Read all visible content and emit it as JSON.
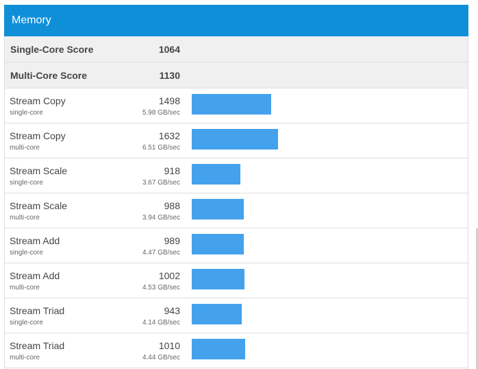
{
  "header": {
    "title": "Memory"
  },
  "summary": [
    {
      "label": "Single-Core Score",
      "score": "1064"
    },
    {
      "label": "Multi-Core Score",
      "score": "1130"
    }
  ],
  "max_score": 1632,
  "bar_color": "#44a2ec",
  "header_color": "#0f8fd8",
  "benchmarks": [
    {
      "name": "Stream Copy",
      "mode": "single-core",
      "score": 1498,
      "rate": "5.98 GB/sec"
    },
    {
      "name": "Stream Copy",
      "mode": "multi-core",
      "score": 1632,
      "rate": "6.51 GB/sec"
    },
    {
      "name": "Stream Scale",
      "mode": "single-core",
      "score": 918,
      "rate": "3.67 GB/sec"
    },
    {
      "name": "Stream Scale",
      "mode": "multi-core",
      "score": 988,
      "rate": "3.94 GB/sec"
    },
    {
      "name": "Stream Add",
      "mode": "single-core",
      "score": 989,
      "rate": "4.47 GB/sec"
    },
    {
      "name": "Stream Add",
      "mode": "multi-core",
      "score": 1002,
      "rate": "4.53 GB/sec"
    },
    {
      "name": "Stream Triad",
      "mode": "single-core",
      "score": 943,
      "rate": "4.14 GB/sec"
    },
    {
      "name": "Stream Triad",
      "mode": "multi-core",
      "score": 1010,
      "rate": "4.44 GB/sec"
    }
  ]
}
